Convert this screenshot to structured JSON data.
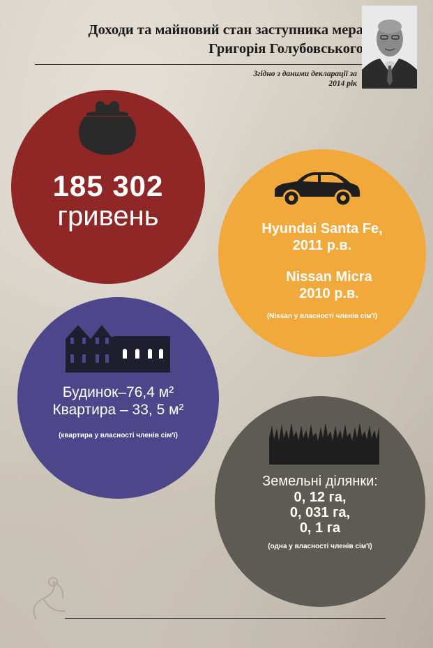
{
  "header": {
    "title_line1": "Доходи та майновий стан заступника мера",
    "title_line2": "Григорія  Голубовського",
    "subtitle_line1": "Згідно з даними декларації за",
    "subtitle_line2": "2014  рік"
  },
  "income": {
    "amount": "185 302",
    "currency": "гривень"
  },
  "cars": {
    "car1": "Hyundai Santa Fe,",
    "car1_year": "2011 р.в.",
    "car2": "Nissan Micra",
    "car2_year": "2010 р.в.",
    "note": "(Nissan у власності членів сім'ї)"
  },
  "realty": {
    "house": "Будинок–76,4 м²",
    "flat": "Квартира – 33, 5 м²",
    "note": "(квартира у власності членів сім'ї)"
  },
  "land": {
    "title": "Земельні ділянки:",
    "plot1": "0, 12 га,",
    "plot2": "0, 031 га,",
    "plot3": "0, 1 га",
    "note": "(одна у власності членів сім'ї)"
  },
  "colors": {
    "income_circle": "#8f2727",
    "cars_circle": "#f2a93b",
    "realty_circle": "#4d468a",
    "land_circle": "#5e5b54"
  },
  "icons": {
    "income": "purse-icon",
    "cars": "car-icon",
    "realty": "house-icon",
    "land": "grass-icon"
  }
}
